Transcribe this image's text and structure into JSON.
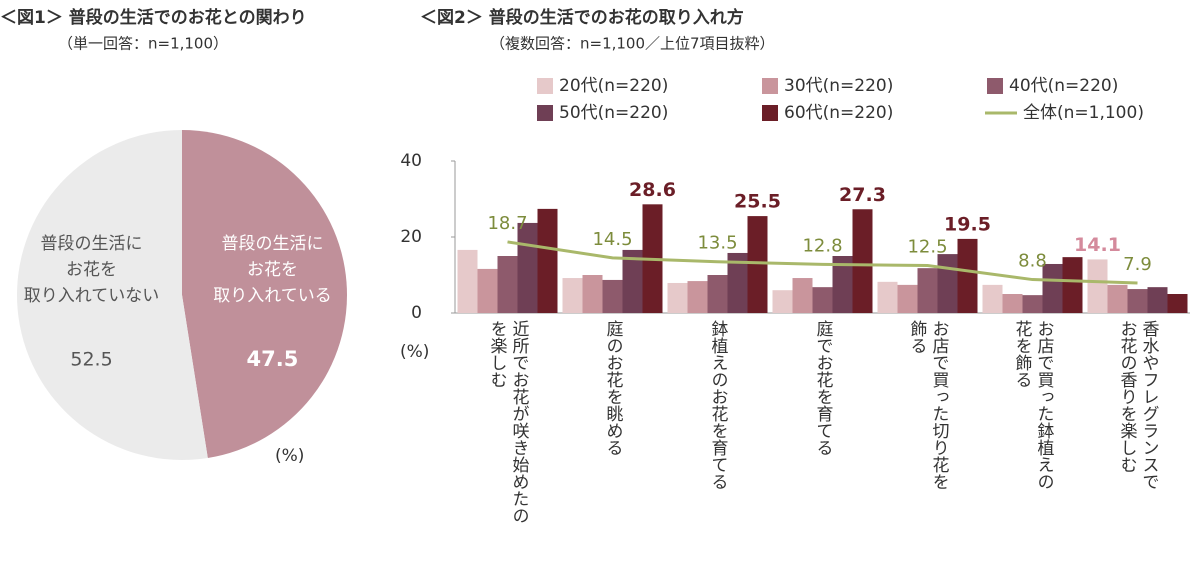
{
  "chart_data": [
    {
      "type": "pie",
      "title": "＜図1＞ 普段の生活でのお花との関わり",
      "subtitle": "（単一回答：n=1,100）",
      "unit_label": "(%)",
      "categories": [
        "普段の生活に\nお花を\n取り入れている",
        "普段の生活に\nお花を\n取り入れていない"
      ],
      "values": [
        47.5,
        52.5
      ],
      "colors": [
        "#c0909a",
        "#ebebeb"
      ]
    },
    {
      "type": "bar",
      "title": "＜図2＞ 普段の生活でのお花の取り入れ方",
      "subtitle": "（複数回答：n=1,100／上位7項目抜粋）",
      "y_label": "(%)",
      "categories": [
        "近所でお花が咲き始めたの\nを楽しむ",
        "庭のお花を眺める",
        "鉢植えのお花を育てる",
        "庭でお花を育てる",
        "お店で買った切り花を\n飾る",
        "お店で買った鉢植えの\n花を飾る",
        "香水やフレグランスで\nお花の香りを楽しむ"
      ],
      "ylim": [
        0,
        40
      ],
      "yticks": [
        0,
        20,
        40
      ],
      "legend": "top",
      "series": [
        {
          "name": "20代(n=220)",
          "color": "#e6c9ca",
          "type": "bar",
          "values": [
            16.6,
            9.2,
            7.9,
            6.0,
            8.2,
            7.4,
            14.1
          ],
          "value_labels": [
            null,
            null,
            null,
            null,
            null,
            null,
            "14.1"
          ],
          "label_color": "#d48a9c"
        },
        {
          "name": "30代(n=220)",
          "color": "#c9959c",
          "type": "bar",
          "values": [
            11.6,
            10.0,
            8.4,
            9.2,
            7.4,
            5.0,
            7.4
          ]
        },
        {
          "name": "40代(n=220)",
          "color": "#8e5a6c",
          "type": "bar",
          "values": [
            15.0,
            8.7,
            10.0,
            6.8,
            11.8,
            4.7,
            6.3
          ]
        },
        {
          "name": "50代(n=220)",
          "color": "#6f3f55",
          "type": "bar",
          "values": [
            23.7,
            16.6,
            15.8,
            15.0,
            15.5,
            12.9,
            6.8
          ]
        },
        {
          "name": "60代(n=220)",
          "color": "#6b1e27",
          "type": "bar",
          "values": [
            27.4,
            28.6,
            25.5,
            27.3,
            19.5,
            14.7,
            5.0
          ],
          "value_labels": [
            null,
            "28.6",
            "25.5",
            "27.3",
            "19.5",
            null,
            null
          ],
          "label_color": "#6b1e27"
        },
        {
          "name": "全体(n=1,100)",
          "color": "#a9b86a",
          "type": "line",
          "values": [
            18.7,
            14.5,
            13.5,
            12.8,
            12.5,
            8.8,
            7.9
          ],
          "value_labels": [
            "18.7",
            "14.5",
            "13.5",
            "12.8",
            "12.5",
            "8.8",
            "7.9"
          ],
          "label_color": "#7d8c3c"
        }
      ]
    }
  ]
}
